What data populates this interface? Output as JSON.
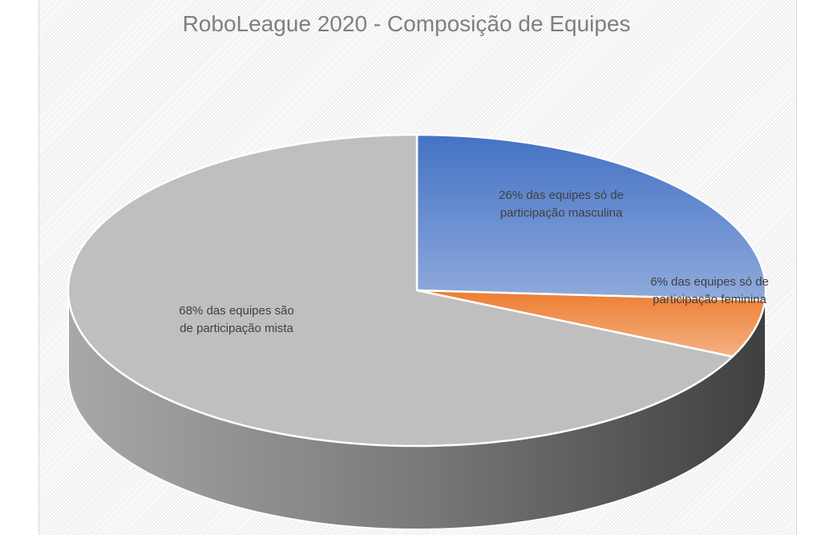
{
  "chart_data": {
    "type": "pie",
    "style": "3d",
    "title": "RoboLeague 2020 - Composição de Equipes",
    "slices": [
      {
        "value": 26,
        "label_lines": [
          "26% das equipes  só de",
          "participação masculina"
        ],
        "color": "#4472c4",
        "color_light": "#8faadc"
      },
      {
        "value": 6,
        "label_lines": [
          "6% das equipes só de",
          "participação feminina"
        ],
        "color": "#ed7d31",
        "color_light": "#f4b183"
      },
      {
        "value": 68,
        "label_lines": [
          "68% das equipes são",
          "de participação mista"
        ],
        "color": "#a6a6a6",
        "color_light": "#bfbfbf"
      }
    ],
    "start_angle": "top",
    "direction": "clockwise",
    "legend": "none"
  }
}
